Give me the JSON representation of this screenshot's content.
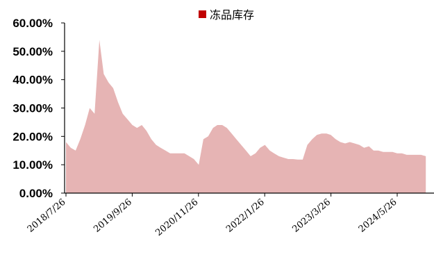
{
  "chart_data": {
    "type": "area",
    "title": "",
    "xlabel": "",
    "ylabel": "",
    "ylim": [
      0,
      60
    ],
    "y_tick_labels": [
      "0.00%",
      "10.00%",
      "20.00%",
      "30.00%",
      "40.00%",
      "50.00%",
      "60.00%"
    ],
    "x_tick_labels": [
      "2018/7/26",
      "2019/9/26",
      "2020/11/26",
      "2022/1/26",
      "2023/3/26",
      "2024/5/26"
    ],
    "legend_position": "top",
    "grid": false,
    "series": [
      {
        "name": "冻品库存",
        "color": "#e6b4b4",
        "legend_marker_color": "#c00000",
        "x": [
          "2018-07-26",
          "2018-08-26",
          "2018-09-26",
          "2018-10-26",
          "2018-11-26",
          "2018-12-26",
          "2019-01-26",
          "2019-02-26",
          "2019-03-26",
          "2019-04-26",
          "2019-05-26",
          "2019-06-26",
          "2019-07-26",
          "2019-08-26",
          "2019-09-26",
          "2019-10-26",
          "2019-11-26",
          "2019-12-26",
          "2020-01-26",
          "2020-02-26",
          "2020-03-26",
          "2020-04-26",
          "2020-05-26",
          "2020-06-26",
          "2020-07-26",
          "2020-08-26",
          "2020-09-26",
          "2020-10-26",
          "2020-11-26",
          "2020-12-26",
          "2021-01-26",
          "2021-02-26",
          "2021-03-26",
          "2021-04-26",
          "2021-05-26",
          "2021-06-26",
          "2021-07-26",
          "2021-08-26",
          "2021-09-26",
          "2021-10-26",
          "2021-11-26",
          "2021-12-26",
          "2022-01-26",
          "2022-02-26",
          "2022-03-26",
          "2022-04-26",
          "2022-05-26",
          "2022-06-26",
          "2022-07-26",
          "2022-08-26",
          "2022-09-26",
          "2022-10-26",
          "2022-11-26",
          "2022-12-26",
          "2023-01-26",
          "2023-02-26",
          "2023-03-26",
          "2023-04-26",
          "2023-05-26",
          "2023-06-26",
          "2023-07-26",
          "2023-08-26",
          "2023-09-26",
          "2023-10-26",
          "2023-11-26",
          "2023-12-26",
          "2024-01-26",
          "2024-02-26",
          "2024-03-26",
          "2024-04-26",
          "2024-05-26",
          "2024-06-26",
          "2024-07-26",
          "2024-08-26",
          "2024-09-26",
          "2024-10-26",
          "2024-11-26"
        ],
        "values": [
          18,
          16,
          15,
          19,
          24,
          30,
          28,
          54,
          42,
          39,
          37,
          32,
          28,
          26,
          24,
          23,
          24,
          22,
          19,
          17,
          16,
          15,
          14,
          14,
          14,
          14,
          13,
          12,
          10,
          19,
          20,
          23,
          24,
          24,
          23,
          21,
          19,
          17,
          15,
          13,
          14,
          16,
          17,
          15,
          14,
          13,
          12.5,
          12,
          12,
          11.8,
          11.8,
          17,
          19,
          20.5,
          21,
          21,
          20.5,
          19,
          18,
          17.5,
          18,
          17.5,
          17,
          16,
          16.5,
          15,
          15,
          14.5,
          14.5,
          14.5,
          14,
          14,
          13.5,
          13.5,
          13.5,
          13.5,
          13
        ]
      }
    ]
  }
}
